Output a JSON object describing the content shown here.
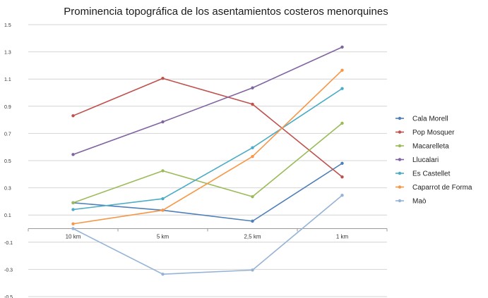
{
  "chart_data": {
    "type": "line",
    "title": "Prominencia topográfica de los asentamientos costeros menorquines",
    "xlabel": "",
    "ylabel": "",
    "categories": [
      "10 km",
      "5 km",
      "2,5 km",
      "1 km"
    ],
    "ylim": [
      -0.5,
      1.5
    ],
    "yticks": [
      "1.5",
      "1.3",
      "1.1",
      "0.9",
      "0.7",
      "0.5",
      "0.3",
      "0.1",
      "-0.1",
      "-0.3",
      "-0.5"
    ],
    "grid": true,
    "legend_position": "right",
    "series": [
      {
        "name": "Cala Morell",
        "color": "#4f7fb8",
        "values": [
          0.19,
          0.135,
          0.055,
          0.48
        ]
      },
      {
        "name": "Pop Mosquer",
        "color": "#c0504d",
        "values": [
          0.83,
          1.105,
          0.915,
          0.38
        ]
      },
      {
        "name": "Macarelleta",
        "color": "#9bbb59",
        "values": [
          0.19,
          0.425,
          0.235,
          0.775
        ]
      },
      {
        "name": "Llucalari",
        "color": "#8064a2",
        "values": [
          0.545,
          0.785,
          1.035,
          1.335
        ]
      },
      {
        "name": "Es Castellet",
        "color": "#4bacc6",
        "values": [
          0.14,
          0.22,
          0.595,
          1.03
        ]
      },
      {
        "name": "Caparrot de Forma",
        "color": "#f79646",
        "values": [
          0.035,
          0.135,
          0.53,
          1.165
        ]
      },
      {
        "name": "Maò",
        "color": "#95b3d7",
        "values": [
          0.0,
          -0.335,
          -0.305,
          0.245
        ]
      }
    ]
  }
}
